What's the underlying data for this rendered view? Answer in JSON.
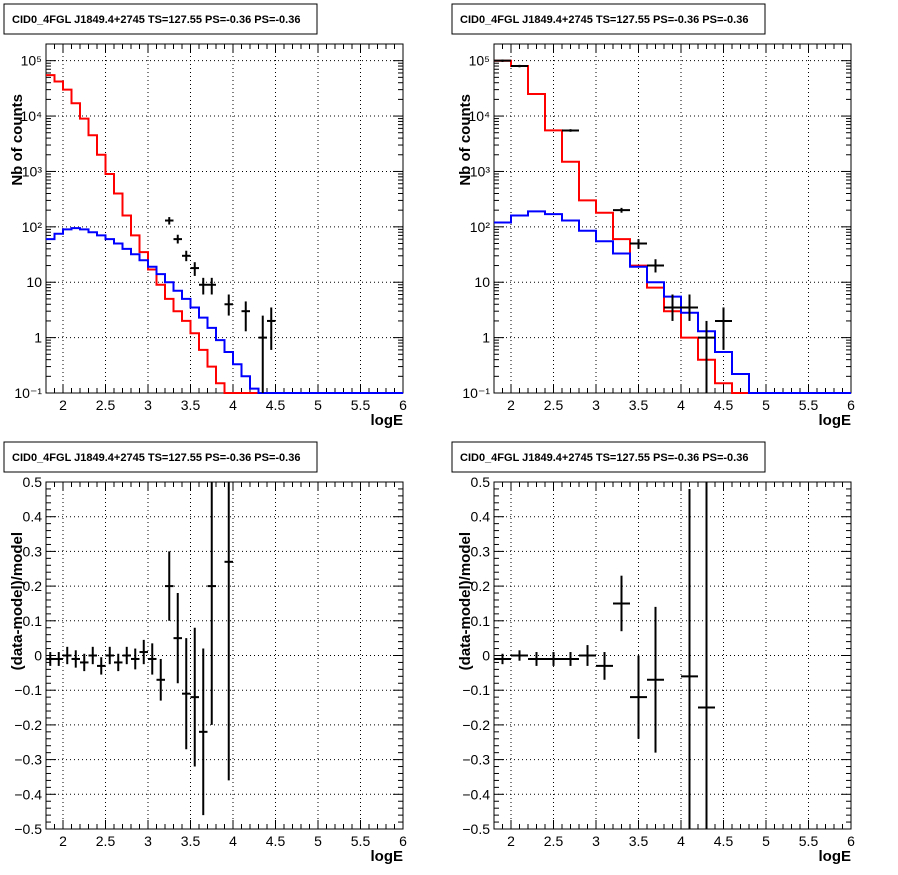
{
  "chart_data": [
    {
      "type": "histogram",
      "title": "CID0_4FGL J1849.4+2745 TS=127.55 PS=-0.36 PS=-0.36",
      "xlabel": "logE",
      "ylabel": "Nb of counts",
      "yscale": "log",
      "xlim": [
        1.8,
        6.0
      ],
      "ylim": [
        0.1,
        200000
      ],
      "xticks": [
        "2",
        "2.5",
        "3",
        "3.5",
        "4",
        "4.5",
        "5",
        "5.5",
        "6"
      ],
      "yticks": [
        "10⁻¹",
        "1",
        "10",
        "10²",
        "10³",
        "10⁴",
        "10⁵"
      ],
      "grid": true,
      "series": [
        {
          "color": "#ff0000",
          "style": "step",
          "bin_edges": [
            1.8,
            1.9,
            2.0,
            2.1,
            2.2,
            2.3,
            2.4,
            2.5,
            2.6,
            2.7,
            2.8,
            2.9,
            3.0,
            3.1,
            3.2,
            3.3,
            3.4,
            3.5,
            3.6,
            3.7,
            3.8,
            3.9,
            4.0,
            4.1,
            4.2,
            4.3,
            4.4,
            4.5,
            4.6,
            4.7,
            4.8,
            4.9,
            5.0,
            5.1,
            5.2,
            5.3,
            5.4,
            5.5,
            5.6,
            5.7,
            5.8,
            5.9,
            6.0
          ],
          "values": [
            55000,
            42000,
            30000,
            17000,
            9000,
            4500,
            2000,
            900,
            400,
            160,
            70,
            35,
            17,
            9,
            5,
            3,
            2,
            1.2,
            0.6,
            0.3,
            0.15,
            0.1,
            0.1,
            0.1,
            0.1,
            0.1,
            0.1,
            0.1,
            0.1,
            0.1,
            0.1,
            0.1,
            0.1,
            0.1,
            0.1,
            0.1,
            0.1,
            0.1,
            0.1,
            0.1,
            0.1,
            0.1
          ]
        },
        {
          "color": "#0000ff",
          "style": "step",
          "bin_edges": [
            1.8,
            1.9,
            2.0,
            2.1,
            2.2,
            2.3,
            2.4,
            2.5,
            2.6,
            2.7,
            2.8,
            2.9,
            3.0,
            3.1,
            3.2,
            3.3,
            3.4,
            3.5,
            3.6,
            3.7,
            3.8,
            3.9,
            4.0,
            4.1,
            4.2,
            4.3,
            4.4,
            4.5,
            4.6,
            4.7,
            4.8,
            4.9,
            5.0,
            5.1,
            5.2,
            5.3,
            5.4,
            5.5,
            5.6,
            5.7,
            5.8,
            5.9,
            6.0
          ],
          "values": [
            60,
            75,
            90,
            95,
            90,
            80,
            70,
            60,
            50,
            40,
            32,
            25,
            19,
            14,
            10,
            7,
            5,
            3.5,
            2.3,
            1.5,
            0.9,
            0.55,
            0.33,
            0.2,
            0.12,
            0.1,
            0.1,
            0.1,
            0.1,
            0.1,
            0.1,
            0.1,
            0.1,
            0.1,
            0.1,
            0.1,
            0.1,
            0.1,
            0.1,
            0.1,
            0.1,
            0.1
          ]
        },
        {
          "color": "#000000",
          "style": "errorbar",
          "points": [
            {
              "x": 3.25,
              "xerr": 0.05,
              "y": 130,
              "ylo": 110,
              "yhi": 150
            },
            {
              "x": 3.35,
              "xerr": 0.05,
              "y": 60,
              "ylo": 50,
              "yhi": 72
            },
            {
              "x": 3.45,
              "xerr": 0.05,
              "y": 30,
              "ylo": 24,
              "yhi": 37
            },
            {
              "x": 3.55,
              "xerr": 0.05,
              "y": 18,
              "ylo": 13,
              "yhi": 23
            },
            {
              "x": 3.65,
              "xerr": 0.05,
              "y": 9,
              "ylo": 6,
              "yhi": 12
            },
            {
              "x": 3.75,
              "xerr": 0.05,
              "y": 9,
              "ylo": 6,
              "yhi": 12
            },
            {
              "x": 3.95,
              "xerr": 0.05,
              "y": 4,
              "ylo": 2.5,
              "yhi": 6
            },
            {
              "x": 4.15,
              "xerr": 0.05,
              "y": 3,
              "ylo": 1.3,
              "yhi": 4.5
            },
            {
              "x": 4.35,
              "xerr": 0.05,
              "y": 1,
              "ylo": 0.1,
              "yhi": 2.5
            },
            {
              "x": 4.45,
              "xerr": 0.05,
              "y": 2,
              "ylo": 0.6,
              "yhi": 3.5
            }
          ]
        }
      ]
    },
    {
      "type": "histogram",
      "title": "CID0_4FGL J1849.4+2745 TS=127.55 PS=-0.36 PS=-0.36",
      "xlabel": "logE",
      "ylabel": "Nb of counts",
      "yscale": "log",
      "xlim": [
        1.8,
        6.0
      ],
      "ylim": [
        0.1,
        200000
      ],
      "xticks": [
        "2",
        "2.5",
        "3",
        "3.5",
        "4",
        "4.5",
        "5",
        "5.5",
        "6"
      ],
      "yticks": [
        "10⁻¹",
        "1",
        "10",
        "10²",
        "10³",
        "10⁴",
        "10⁵"
      ],
      "grid": true,
      "series": [
        {
          "color": "#ff0000",
          "style": "step",
          "bin_edges": [
            1.8,
            2.0,
            2.2,
            2.4,
            2.6,
            2.8,
            3.0,
            3.2,
            3.4,
            3.6,
            3.8,
            4.0,
            4.2,
            4.4,
            4.6,
            4.8,
            5.0,
            5.2,
            5.4,
            5.6,
            5.8,
            6.0
          ],
          "values": [
            100000,
            80000,
            25000,
            5500,
            1500,
            300,
            180,
            60,
            20,
            8,
            3,
            1,
            0.4,
            0.15,
            0.1,
            0.1,
            0.1,
            0.1,
            0.1,
            0.1,
            0.1
          ]
        },
        {
          "color": "#0000ff",
          "style": "step",
          "bin_edges": [
            1.8,
            2.0,
            2.2,
            2.4,
            2.6,
            2.8,
            3.0,
            3.2,
            3.4,
            3.6,
            3.8,
            4.0,
            4.2,
            4.4,
            4.6,
            4.8,
            5.0,
            5.2,
            5.4,
            5.6,
            5.8,
            6.0
          ],
          "values": [
            120,
            160,
            190,
            170,
            130,
            85,
            55,
            33,
            19,
            10,
            5.5,
            2.8,
            1.3,
            0.55,
            0.22,
            0.1,
            0.1,
            0.1,
            0.1,
            0.1,
            0.1
          ]
        },
        {
          "color": "#000000",
          "style": "errorbar",
          "points": [
            {
              "x": 1.9,
              "xerr": 0.1,
              "y": 100000,
              "ylo": 95000,
              "yhi": 105000
            },
            {
              "x": 2.1,
              "xerr": 0.1,
              "y": 80000,
              "ylo": 76000,
              "yhi": 84000
            },
            {
              "x": 2.7,
              "xerr": 0.1,
              "y": 5500,
              "ylo": 5200,
              "yhi": 5800
            },
            {
              "x": 3.3,
              "xerr": 0.1,
              "y": 200,
              "ylo": 180,
              "yhi": 220
            },
            {
              "x": 3.5,
              "xerr": 0.1,
              "y": 50,
              "ylo": 40,
              "yhi": 60
            },
            {
              "x": 3.7,
              "xerr": 0.1,
              "y": 20,
              "ylo": 15,
              "yhi": 26
            },
            {
              "x": 3.9,
              "xerr": 0.1,
              "y": 3.5,
              "ylo": 2,
              "yhi": 6
            },
            {
              "x": 4.1,
              "xerr": 0.1,
              "y": 3.5,
              "ylo": 2,
              "yhi": 6
            },
            {
              "x": 4.3,
              "xerr": 0.1,
              "y": 1,
              "ylo": 0.1,
              "yhi": 2
            },
            {
              "x": 4.5,
              "xerr": 0.1,
              "y": 2,
              "ylo": 0.6,
              "yhi": 3.5
            }
          ]
        }
      ]
    },
    {
      "type": "errorbar",
      "title": "CID0_4FGL J1849.4+2745 TS=127.55 PS=-0.36 PS=-0.36",
      "xlabel": "logE",
      "ylabel": "(data-model)/model",
      "yscale": "linear",
      "xlim": [
        1.8,
        6.0
      ],
      "ylim": [
        -0.5,
        0.5
      ],
      "xticks": [
        "2",
        "2.5",
        "3",
        "3.5",
        "4",
        "4.5",
        "5",
        "5.5",
        "6"
      ],
      "yticks": [
        "−0.5",
        "−0.4",
        "−0.3",
        "−0.2",
        "−0.1",
        "0",
        "0.1",
        "0.2",
        "0.3",
        "0.4",
        "0.5"
      ],
      "grid": true,
      "series": [
        {
          "color": "#000000",
          "points": [
            {
              "x": 1.85,
              "xerr": 0.05,
              "y": -0.01,
              "err": 0.02
            },
            {
              "x": 1.95,
              "xerr": 0.05,
              "y": -0.01,
              "err": 0.02
            },
            {
              "x": 2.05,
              "xerr": 0.05,
              "y": 0.0,
              "err": 0.025
            },
            {
              "x": 2.15,
              "xerr": 0.05,
              "y": -0.01,
              "err": 0.025
            },
            {
              "x": 2.25,
              "xerr": 0.05,
              "y": -0.02,
              "err": 0.025
            },
            {
              "x": 2.35,
              "xerr": 0.05,
              "y": 0.0,
              "err": 0.025
            },
            {
              "x": 2.45,
              "xerr": 0.05,
              "y": -0.03,
              "err": 0.025
            },
            {
              "x": 2.55,
              "xerr": 0.05,
              "y": 0.0,
              "err": 0.025
            },
            {
              "x": 2.65,
              "xerr": 0.05,
              "y": -0.02,
              "err": 0.025
            },
            {
              "x": 2.75,
              "xerr": 0.05,
              "y": 0.0,
              "err": 0.025
            },
            {
              "x": 2.85,
              "xerr": 0.05,
              "y": -0.01,
              "err": 0.03
            },
            {
              "x": 2.95,
              "xerr": 0.05,
              "y": 0.01,
              "err": 0.035
            },
            {
              "x": 3.05,
              "xerr": 0.05,
              "y": -0.01,
              "err": 0.045
            },
            {
              "x": 3.15,
              "xerr": 0.05,
              "y": -0.07,
              "err": 0.06
            },
            {
              "x": 3.25,
              "xerr": 0.05,
              "y": 0.2,
              "err": 0.1
            },
            {
              "x": 3.35,
              "xerr": 0.05,
              "y": 0.05,
              "err": 0.13
            },
            {
              "x": 3.45,
              "xerr": 0.05,
              "y": -0.11,
              "err": 0.16
            },
            {
              "x": 3.55,
              "xerr": 0.05,
              "y": -0.12,
              "err": 0.2
            },
            {
              "x": 3.65,
              "xerr": 0.05,
              "y": -0.22,
              "err": 0.24
            },
            {
              "x": 3.75,
              "xerr": 0.05,
              "y": 0.2,
              "err": 0.4
            },
            {
              "x": 3.95,
              "xerr": 0.05,
              "y": 0.27,
              "err": 0.63
            }
          ]
        }
      ]
    },
    {
      "type": "errorbar",
      "title": "CID0_4FGL J1849.4+2745 TS=127.55 PS=-0.36 PS=-0.36",
      "xlabel": "logE",
      "ylabel": "(data-model)/model",
      "yscale": "linear",
      "xlim": [
        1.8,
        6.0
      ],
      "ylim": [
        -0.5,
        0.5
      ],
      "xticks": [
        "2",
        "2.5",
        "3",
        "3.5",
        "4",
        "4.5",
        "5",
        "5.5",
        "6"
      ],
      "yticks": [
        "−0.5",
        "−0.4",
        "−0.3",
        "−0.2",
        "−0.1",
        "0",
        "0.1",
        "0.2",
        "0.3",
        "0.4",
        "0.5"
      ],
      "grid": true,
      "series": [
        {
          "color": "#000000",
          "points": [
            {
              "x": 1.9,
              "xerr": 0.1,
              "y": -0.01,
              "err": 0.015
            },
            {
              "x": 2.1,
              "xerr": 0.1,
              "y": 0.0,
              "err": 0.015
            },
            {
              "x": 2.3,
              "xerr": 0.1,
              "y": -0.01,
              "err": 0.02
            },
            {
              "x": 2.5,
              "xerr": 0.1,
              "y": -0.01,
              "err": 0.02
            },
            {
              "x": 2.7,
              "xerr": 0.1,
              "y": -0.01,
              "err": 0.02
            },
            {
              "x": 2.9,
              "xerr": 0.1,
              "y": 0.0,
              "err": 0.03
            },
            {
              "x": 3.1,
              "xerr": 0.1,
              "y": -0.03,
              "err": 0.04
            },
            {
              "x": 3.3,
              "xerr": 0.1,
              "y": 0.15,
              "err": 0.08
            },
            {
              "x": 3.5,
              "xerr": 0.1,
              "y": -0.12,
              "err": 0.12
            },
            {
              "x": 3.7,
              "xerr": 0.1,
              "y": -0.07,
              "err": 0.21
            },
            {
              "x": 4.1,
              "xerr": 0.1,
              "y": -0.06,
              "err": 0.54
            },
            {
              "x": 4.3,
              "xerr": 0.1,
              "y": -0.15,
              "err": 0.65
            }
          ]
        }
      ]
    }
  ]
}
